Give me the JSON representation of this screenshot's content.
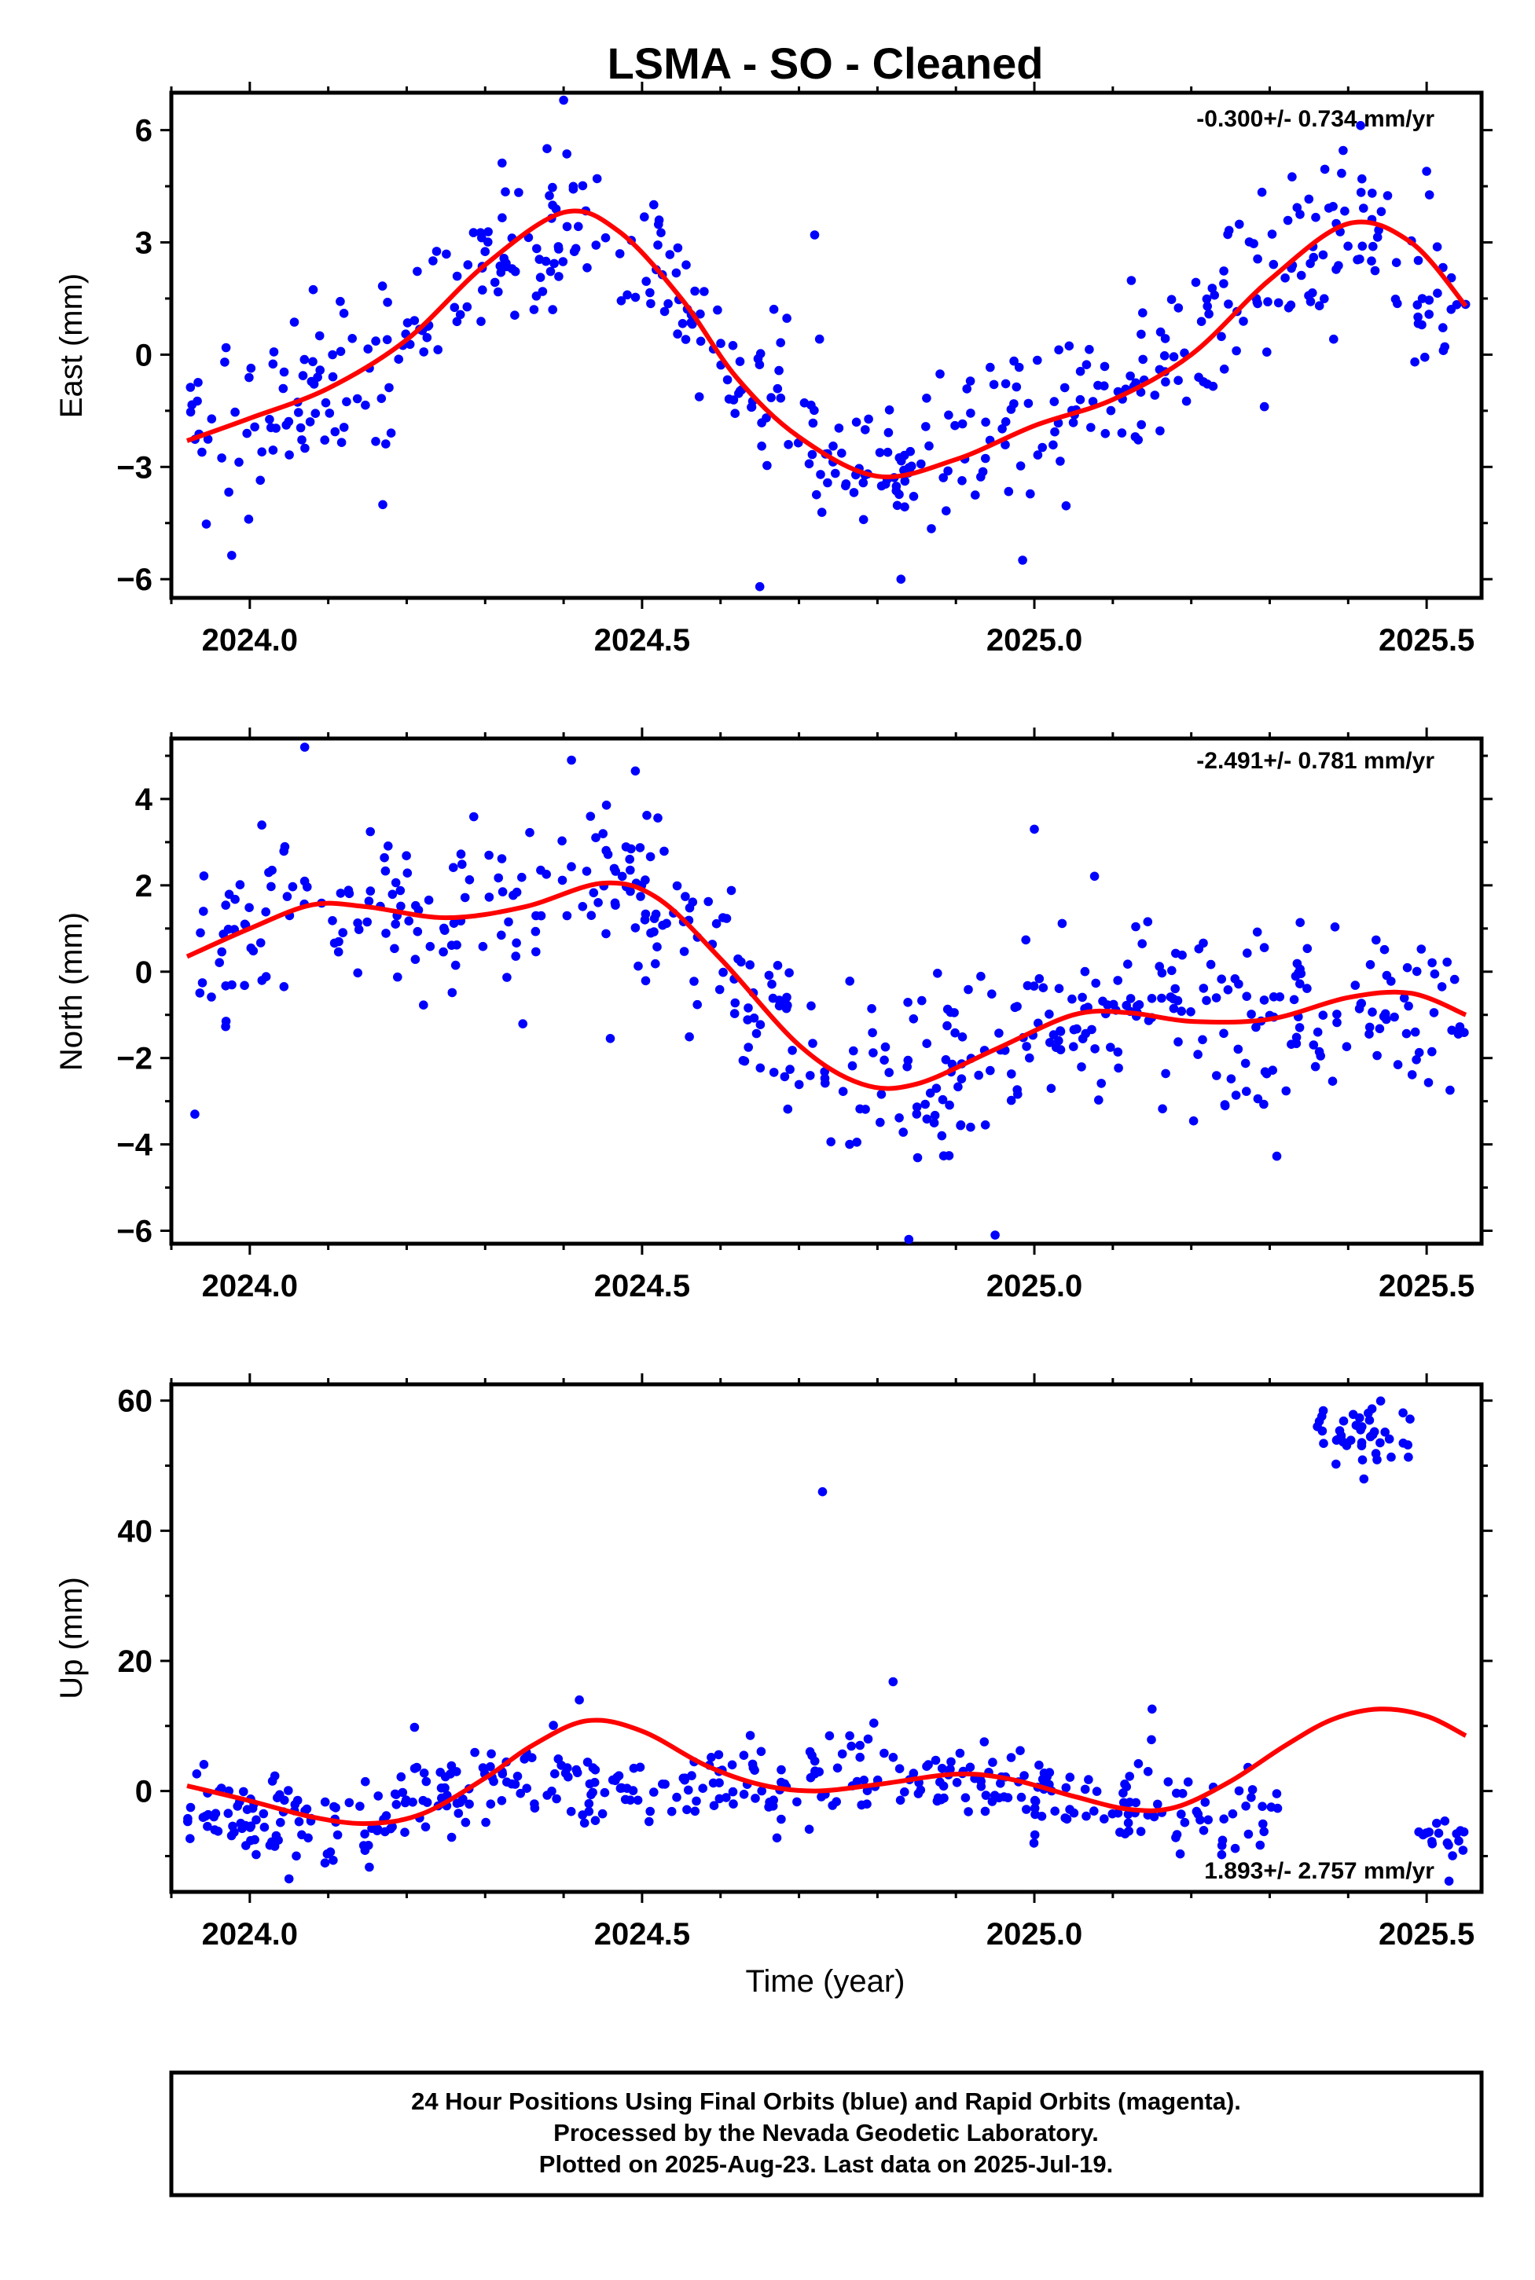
{
  "title": "LSMA  - SO - Cleaned",
  "x_axis_title": "Time (year)",
  "footer": {
    "line1": "24 Hour Positions Using Final Orbits (blue) and Rapid Orbits (magenta).",
    "line2": "Processed by the Nevada Geodetic Laboratory.",
    "line3": "Plotted on 2025-Aug-23. Last data on 2025-Jul-19."
  },
  "colors": {
    "points": "#0000ff",
    "fit": "#ff0000",
    "frame": "#000000"
  },
  "chart_data": [
    {
      "type": "scatter",
      "panel": "east",
      "ylabel": "East (mm)",
      "rate_label": "-0.300+/- 0.734 mm/yr",
      "rate_position": "top-right",
      "xlim": [
        2023.9,
        2025.57
      ],
      "ylim": [
        -6.5,
        7.0
      ],
      "xticks": [
        "2024.0",
        "2024.5",
        "2025.0",
        "2025.5"
      ],
      "yticks": [
        "−6",
        "−3",
        "0",
        "3",
        "6"
      ],
      "ytick_values": [
        -6,
        -3,
        0,
        3,
        6
      ],
      "series": [
        {
          "kind": "points",
          "trend": [
            [
              2023.92,
              -2.3
            ],
            [
              2024.1,
              -0.9
            ],
            [
              2024.25,
              1.2
            ],
            [
              2024.4,
              3.8
            ],
            [
              2024.55,
              1.5
            ],
            [
              2024.7,
              -2.2
            ],
            [
              2024.8,
              -3.2
            ],
            [
              2024.95,
              -2.4
            ],
            [
              2025.1,
              -1.2
            ],
            [
              2025.25,
              1.0
            ],
            [
              2025.4,
              3.5
            ],
            [
              2025.55,
              1.3
            ]
          ],
          "scatter": 1.1,
          "outliers": [
            [
              2024.4,
              6.8
            ],
            [
              2024.65,
              -6.2
            ],
            [
              2024.83,
              -6.0
            ],
            [
              2024.72,
              3.2
            ],
            [
              2025.5,
              4.9
            ]
          ]
        },
        {
          "kind": "fit",
          "points": [
            [
              2023.92,
              -2.3
            ],
            [
              2024.0,
              -1.7
            ],
            [
              2024.1,
              -0.9
            ],
            [
              2024.2,
              0.4
            ],
            [
              2024.3,
              2.4
            ],
            [
              2024.4,
              3.8
            ],
            [
              2024.47,
              3.3
            ],
            [
              2024.55,
              1.5
            ],
            [
              2024.62,
              -0.6
            ],
            [
              2024.7,
              -2.2
            ],
            [
              2024.8,
              -3.25
            ],
            [
              2024.9,
              -2.8
            ],
            [
              2025.0,
              -1.9
            ],
            [
              2025.1,
              -1.2
            ],
            [
              2025.2,
              0.0
            ],
            [
              2025.3,
              2.0
            ],
            [
              2025.4,
              3.5
            ],
            [
              2025.48,
              3.0
            ],
            [
              2025.55,
              1.3
            ]
          ]
        }
      ]
    },
    {
      "type": "scatter",
      "panel": "north",
      "ylabel": "North (mm)",
      "rate_label": "-2.491+/- 0.781 mm/yr",
      "rate_position": "top-right",
      "xlim": [
        2023.9,
        2025.57
      ],
      "ylim": [
        -6.3,
        5.4
      ],
      "xticks": [
        "2024.0",
        "2024.5",
        "2025.0",
        "2025.5"
      ],
      "yticks": [
        "−6",
        "−4",
        "−2",
        "0",
        "2",
        "4"
      ],
      "ytick_values": [
        -6,
        -4,
        -2,
        0,
        2,
        4
      ],
      "series": [
        {
          "kind": "points",
          "trend": [
            [
              2023.92,
              0.3
            ],
            [
              2024.05,
              1.6
            ],
            [
              2024.2,
              1.2
            ],
            [
              2024.3,
              1.4
            ],
            [
              2024.45,
              2.1
            ],
            [
              2024.55,
              1.2
            ],
            [
              2024.65,
              -0.8
            ],
            [
              2024.75,
              -2.5
            ],
            [
              2024.85,
              -2.6
            ],
            [
              2024.95,
              -1.7
            ],
            [
              2025.05,
              -1.0
            ],
            [
              2025.15,
              -1.0
            ],
            [
              2025.3,
              -1.2
            ],
            [
              2025.45,
              -0.5
            ],
            [
              2025.55,
              -1.0
            ]
          ],
          "scatter": 1.0,
          "outliers": [
            [
              2024.07,
              5.2
            ],
            [
              2024.41,
              4.9
            ],
            [
              2024.84,
              -6.2
            ],
            [
              2024.95,
              -6.1
            ],
            [
              2023.93,
              -3.3
            ],
            [
              2025.0,
              3.3
            ]
          ]
        },
        {
          "kind": "fit",
          "points": [
            [
              2023.92,
              0.35
            ],
            [
              2024.0,
              1.0
            ],
            [
              2024.08,
              1.55
            ],
            [
              2024.15,
              1.5
            ],
            [
              2024.25,
              1.25
            ],
            [
              2024.35,
              1.5
            ],
            [
              2024.45,
              2.05
            ],
            [
              2024.52,
              1.7
            ],
            [
              2024.6,
              0.3
            ],
            [
              2024.7,
              -1.7
            ],
            [
              2024.78,
              -2.6
            ],
            [
              2024.85,
              -2.6
            ],
            [
              2024.95,
              -1.8
            ],
            [
              2025.05,
              -1.0
            ],
            [
              2025.12,
              -0.95
            ],
            [
              2025.2,
              -1.15
            ],
            [
              2025.3,
              -1.1
            ],
            [
              2025.4,
              -0.6
            ],
            [
              2025.48,
              -0.5
            ],
            [
              2025.55,
              -1.0
            ]
          ]
        }
      ]
    },
    {
      "type": "scatter",
      "panel": "up",
      "ylabel": "Up (mm)",
      "rate_label": "1.893+/- 2.757 mm/yr",
      "rate_position": "bottom-right",
      "xlim": [
        2023.9,
        2025.57
      ],
      "ylim": [
        -15.5,
        62.5
      ],
      "xticks": [
        "2024.0",
        "2024.5",
        "2025.0",
        "2025.5"
      ],
      "yticks": [
        "0",
        "20",
        "40",
        "60"
      ],
      "ytick_values": [
        0,
        20,
        40,
        60
      ],
      "series": [
        {
          "kind": "points",
          "trend": [
            [
              2023.92,
              -2.0
            ],
            [
              2024.05,
              -5.0
            ],
            [
              2024.2,
              -3.0
            ],
            [
              2024.3,
              2.0
            ],
            [
              2024.4,
              1.5
            ],
            [
              2024.5,
              0.5
            ],
            [
              2024.6,
              2.0
            ],
            [
              2024.7,
              0.0
            ],
            [
              2024.8,
              1.5
            ],
            [
              2024.9,
              1.0
            ],
            [
              2025.0,
              0.5
            ],
            [
              2025.1,
              -1.5
            ],
            [
              2025.2,
              -3.0
            ],
            [
              2025.31,
              -4.0
            ]
          ],
          "scatter": 3.2,
          "outliers": [
            [
              2024.73,
              46.0
            ],
            [
              2024.42,
              14.0
            ],
            [
              2024.82,
              16.8
            ],
            [
              2025.15,
              12.6
            ],
            [
              2024.05,
              -13.5
            ],
            [
              2024.21,
              9.8
            ]
          ]
        },
        {
          "kind": "cluster",
          "x_range": [
            2025.36,
            2025.48
          ],
          "y_center": 54.5,
          "spread": 4.0,
          "count": 42
        },
        {
          "kind": "cluster",
          "x_range": [
            2025.49,
            2025.55
          ],
          "y_center": -7.5,
          "spread": 3.0,
          "count": 18
        },
        {
          "kind": "fit",
          "points": [
            [
              2023.92,
              0.8
            ],
            [
              2024.0,
              -1.5
            ],
            [
              2024.08,
              -4.0
            ],
            [
              2024.15,
              -5.0
            ],
            [
              2024.22,
              -3.5
            ],
            [
              2024.3,
              2.0
            ],
            [
              2024.36,
              7.0
            ],
            [
              2024.43,
              10.8
            ],
            [
              2024.5,
              9.2
            ],
            [
              2024.58,
              4.0
            ],
            [
              2024.65,
              1.0
            ],
            [
              2024.72,
              0.0
            ],
            [
              2024.8,
              1.0
            ],
            [
              2024.9,
              2.6
            ],
            [
              2024.97,
              1.8
            ],
            [
              2025.05,
              -0.8
            ],
            [
              2025.12,
              -2.8
            ],
            [
              2025.18,
              -2.5
            ],
            [
              2025.25,
              1.5
            ],
            [
              2025.32,
              7.0
            ],
            [
              2025.38,
              11.0
            ],
            [
              2025.44,
              12.6
            ],
            [
              2025.5,
              11.5
            ],
            [
              2025.55,
              8.5
            ]
          ]
        }
      ]
    }
  ]
}
